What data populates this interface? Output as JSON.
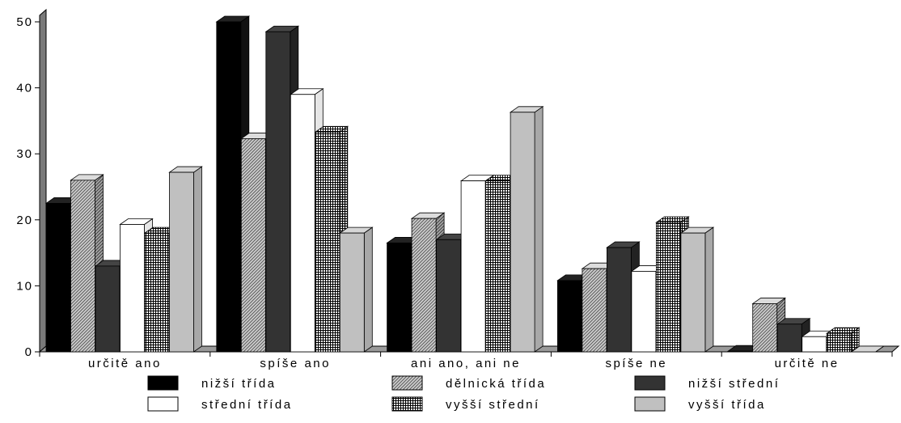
{
  "chart_data": {
    "type": "bar",
    "categories": [
      "určitě ano",
      "spíše ano",
      "ani ano, ani ne",
      "spíše ne",
      "určitě ne"
    ],
    "series": [
      {
        "name": "nižší třída",
        "values": [
          22.5,
          50,
          16.5,
          10.8,
          0.1
        ],
        "color": "#000000",
        "pattern": "solid"
      },
      {
        "name": "dělnická třída",
        "values": [
          26,
          32.3,
          20.2,
          12.6,
          7.3
        ],
        "color": "#bdbdbd",
        "pattern": "diagonal"
      },
      {
        "name": "nižší střední",
        "values": [
          13,
          48.5,
          17,
          15.8,
          4.2
        ],
        "color": "#333333",
        "pattern": "solid"
      },
      {
        "name": "střední třída",
        "values": [
          19.3,
          39,
          25.9,
          12.2,
          2.3
        ],
        "color": "#ffffff",
        "pattern": "solid"
      },
      {
        "name": "vyšší střední",
        "values": [
          18,
          33.3,
          25.9,
          19.6,
          2.8
        ],
        "color": "#ffffff",
        "pattern": "grid"
      },
      {
        "name": "vyšší třída",
        "values": [
          27.2,
          18,
          36.3,
          18,
          0
        ],
        "color": "#c0c0c0",
        "pattern": "solid"
      }
    ],
    "title": "",
    "xlabel": "",
    "ylabel": "",
    "ylim": [
      0,
      50
    ],
    "yticks": [
      0,
      10,
      20,
      30,
      40,
      50
    ],
    "grid": false,
    "legend": "bottom"
  }
}
